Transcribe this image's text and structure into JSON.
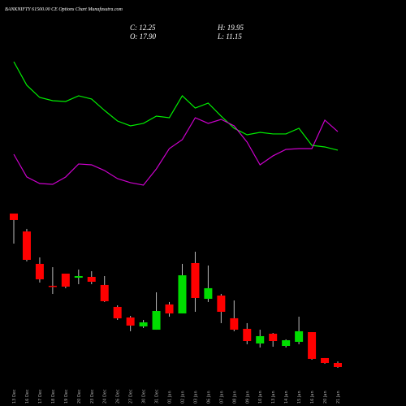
{
  "chart_data": {
    "type": "candlestick",
    "title": "BANKNIFTY 61500.00 CE Options Chart Munafasutra.com",
    "ohlc_labels": [
      "C: 12.25",
      "H: 19.95",
      "O: 17.90",
      "L: 11.15"
    ],
    "categories": [
      "13 Dec",
      "16 Dec",
      "17 Dec",
      "18 Dec",
      "19 Dec",
      "20 Dec",
      "23 Dec",
      "24 Dec",
      "26 Dec",
      "27 Dec",
      "30 Dec",
      "31 Dec",
      "01 Jan",
      "02 Jan",
      "03 Jan",
      "06 Jan",
      "07 Jan",
      "08 Jan",
      "09 Jan",
      "10 Jan",
      "13 Jan",
      "14 Jan",
      "15 Jan",
      "16 Jan",
      "20 Jan",
      "21 Jan"
    ],
    "open": [
      225.8,
      200.9,
      155.8,
      125.3,
      142.2,
      136.5,
      137.7,
      126.4,
      95.9,
      81.2,
      68.8,
      64.2,
      99.3,
      86.8,
      156.9,
      107.2,
      111.7,
      80.1,
      65.4,
      45.0,
      58.6,
      41.6,
      47.3,
      60.8,
      24.7,
      17.9
    ],
    "high": [
      225.8,
      204.4,
      164.8,
      151.2,
      142.2,
      147.9,
      145.6,
      138.8,
      98.1,
      83.4,
      77.8,
      116.2,
      102.7,
      155.8,
      172.7,
      153.5,
      114.0,
      104.9,
      73.3,
      64.2,
      59.7,
      50.7,
      82.3,
      60.8,
      24.7,
      19.95
    ],
    "low": [
      184.0,
      159.2,
      129.8,
      113.9,
      121.9,
      127.5,
      127.5,
      102.7,
      77.8,
      62.0,
      66.5,
      64.2,
      82.3,
      86.8,
      89.1,
      102.7,
      73.3,
      62.0,
      43.9,
      39.4,
      40.5,
      39.4,
      43.9,
      22.4,
      16.8,
      11.15
    ],
    "close": [
      216.8,
      161.4,
      134.3,
      124.2,
      124.1,
      138.8,
      130.9,
      103.8,
      80.0,
      69.9,
      74.4,
      90.2,
      86.8,
      139.9,
      108.3,
      121.9,
      89.1,
      64.2,
      48.4,
      55.2,
      48.4,
      49.5,
      62.0,
      23.6,
      17.9,
      12.25
    ],
    "up_color": "#00dd00",
    "down_color": "#ff0000",
    "series": [
      {
        "color": "#00ee00",
        "values": [
          437.1,
          404.4,
          387.4,
          382.9,
          381.8,
          389.7,
          385.2,
          369.3,
          354.6,
          347.9,
          351.3,
          361.4,
          359.2,
          389.7,
          372.7,
          379.5,
          361.4,
          344.5,
          335.4,
          338.8,
          336.6,
          336.6,
          344.5,
          320.7,
          318.5,
          314.0
        ]
      },
      {
        "color": "#cc00cc",
        "values": [
          308.3,
          276.7,
          267.6,
          266.5,
          276.7,
          294.8,
          293.6,
          285.7,
          274.4,
          268.8,
          265.4,
          288.0,
          316.2,
          328.7,
          359.2,
          351.3,
          356.9,
          347.9,
          325.3,
          293.6,
          306.1,
          315.1,
          316.2,
          316.2,
          355.8,
          339.9
        ]
      }
    ],
    "ylim": [
      -42,
      523
    ]
  }
}
